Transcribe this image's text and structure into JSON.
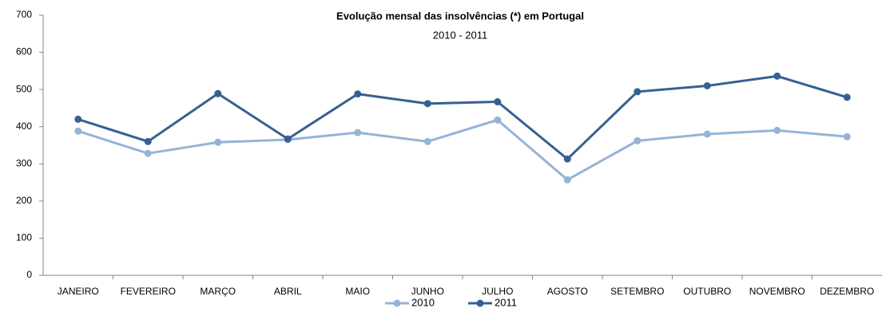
{
  "chart_data": {
    "type": "line",
    "title": "Evolução mensal das insolvências (*) em Portugal",
    "subtitle": "2010 - 2011",
    "categories": [
      "JANEIRO",
      "FEVEREIRO",
      "MARÇO",
      "ABRIL",
      "MAIO",
      "JUNHO",
      "JULHO",
      "AGOSTO",
      "SETEMBRO",
      "OUTUBRO",
      "NOVEMBRO",
      "DEZEMBRO"
    ],
    "series": [
      {
        "name": "2010",
        "color": "#95b3d7",
        "values": [
          388,
          328,
          358,
          365,
          384,
          360,
          418,
          257,
          362,
          380,
          390,
          373
        ]
      },
      {
        "name": "2011",
        "color": "#376092",
        "values": [
          420,
          360,
          489,
          367,
          488,
          462,
          467,
          313,
          494,
          510,
          536,
          479
        ]
      }
    ],
    "ylim": [
      0,
      700
    ],
    "yticks": [
      0,
      100,
      200,
      300,
      400,
      500,
      600,
      700
    ],
    "grid": false,
    "legend": "bottom"
  }
}
